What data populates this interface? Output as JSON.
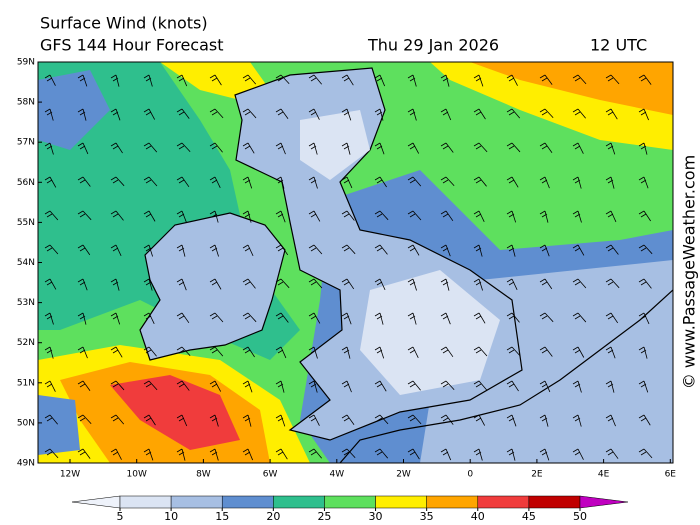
{
  "header": {
    "title": "Surface Wind (knots)",
    "subtitle": "GFS 144 Hour Forecast",
    "date": "Thu 29 Jan 2026",
    "time": "12 UTC"
  },
  "map": {
    "lat_labels": [
      "59N",
      "58N",
      "57N",
      "56N",
      "55N",
      "54N",
      "53N",
      "52N",
      "51N",
      "50N",
      "49N"
    ],
    "lon_labels": [
      "12W",
      "10W",
      "8W",
      "6W",
      "4W",
      "2W",
      "0",
      "2E",
      "4E",
      "6E"
    ]
  },
  "colorbar": {
    "ticks": [
      5,
      10,
      15,
      20,
      25,
      30,
      35,
      40,
      45,
      50
    ],
    "colors": [
      "#eef2fa",
      "#dbe4f3",
      "#a7bfe3",
      "#5f8ed0",
      "#2fbf8d",
      "#5ee05e",
      "#ffee00",
      "#ffa500",
      "#f03c3c",
      "#c00000",
      "#c000c0"
    ]
  },
  "credit": "© www.PassageWeather.com"
}
